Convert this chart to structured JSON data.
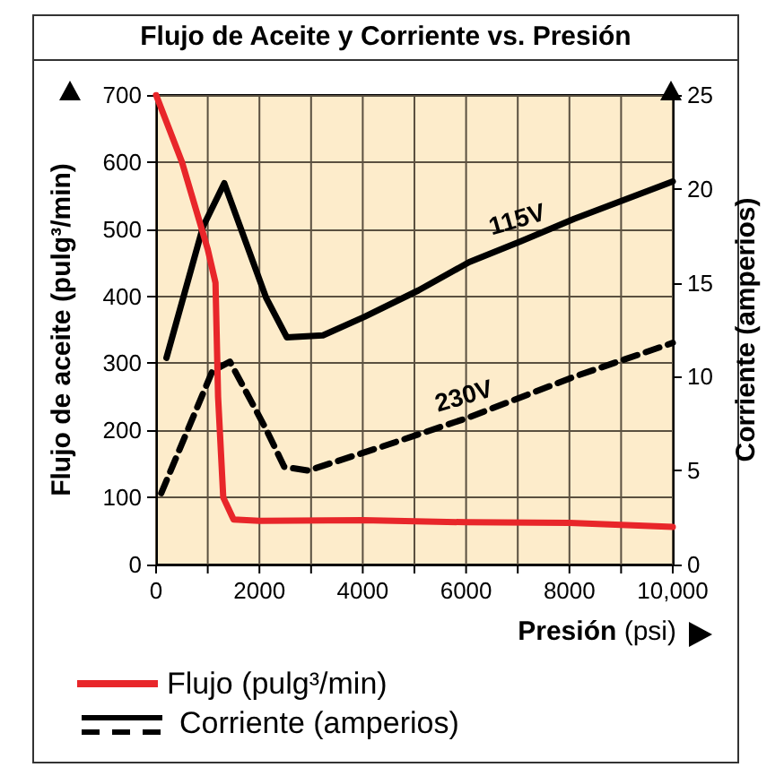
{
  "chart_data": {
    "type": "line",
    "title": "Flujo de Aceite y Corriente vs. Presión",
    "xlabel": "Presión (psi)",
    "ylabel": "Flujo de aceite (pulg³/min)",
    "y2label": "Corriente (amperios)",
    "xlim": [
      0,
      10000
    ],
    "xticks": [
      0,
      {
        "value": 1000,
        "label": null
      },
      2000,
      {
        "value": 3000,
        "label": null
      },
      4000,
      {
        "value": 5000,
        "label": null
      },
      6000,
      {
        "value": 7000,
        "label": null
      },
      8000,
      {
        "value": 9000,
        "label": null
      },
      {
        "value": 10000,
        "label": "10,000"
      }
    ],
    "ylim": [
      0,
      700
    ],
    "yticks": [
      0,
      100,
      200,
      300,
      400,
      500,
      600,
      700
    ],
    "y2lim": [
      0,
      25
    ],
    "y2ticks": [
      0,
      5,
      10,
      15,
      20,
      25
    ],
    "grid": true,
    "legend": "bottom left",
    "marker": "none",
    "annotations": [
      "Corriente (amperios)"
    ],
    "series": [
      {
        "name": "Flujo (pulg³/min)",
        "color": "#e8262a",
        "line_style": "solid",
        "x": [
          0,
          500,
          1000,
          1150,
          1200,
          1300,
          1500,
          2000,
          4000,
          6000,
          8000,
          10000
        ],
        "values": [
          700,
          600,
          470,
          420,
          250,
          100,
          67,
          65,
          66,
          63,
          62,
          56
        ]
      },
      {
        "name": "115V",
        "color": "#000000",
        "axis": "y2",
        "line_style": "solid",
        "x": [
          200,
          910,
          1320,
          2130,
          2530,
          3230,
          4040,
          5080,
          6060,
          7050,
          8090,
          10000
        ],
        "values": [
          11.0,
          18.0,
          20.3,
          14.2,
          12.1,
          12.2,
          13.2,
          14.6,
          16.1,
          17.2,
          18.4,
          20.4
        ]
      },
      {
        "name": "230V",
        "color": "#000000",
        "axis": "y2",
        "line_style": "dashed",
        "x": [
          100,
          1090,
          1430,
          2130,
          2480,
          2940,
          4290,
          6020,
          8090,
          10000
        ],
        "values": [
          3.8,
          10.3,
          10.8,
          7.2,
          5.2,
          5.0,
          6.2,
          7.8,
          10.0,
          11.8
        ]
      }
    ]
  }
}
